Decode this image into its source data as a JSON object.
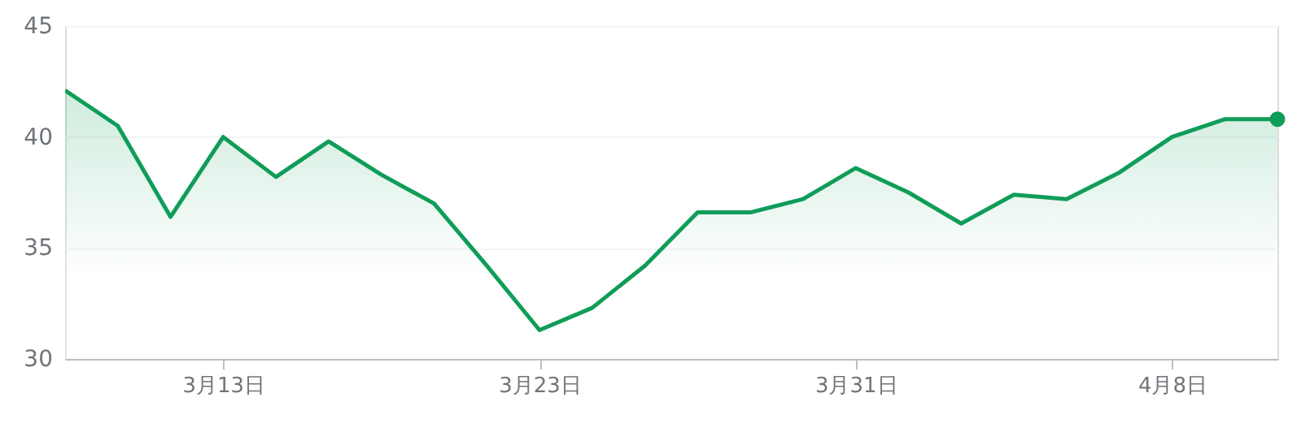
{
  "chart_data": {
    "type": "area",
    "categories": [
      null,
      null,
      null,
      "3月13日",
      null,
      null,
      null,
      null,
      null,
      "3月23日",
      null,
      null,
      null,
      null,
      null,
      "3月31日",
      null,
      null,
      null,
      null,
      null,
      "4月8日",
      null,
      null
    ],
    "series": [
      {
        "color": "#0f9d58",
        "values": [
          42.1,
          40.5,
          36.4,
          40.0,
          38.2,
          39.8,
          38.3,
          37.0,
          34.2,
          31.3,
          32.3,
          34.2,
          36.6,
          36.6,
          37.2,
          38.6,
          37.5,
          36.1,
          37.4,
          37.2,
          38.4,
          40.0,
          40.8,
          40.8
        ]
      }
    ],
    "ylim": [
      30,
      45
    ],
    "yticks": [
      30,
      35,
      40,
      45
    ],
    "grid": "y",
    "marker": "none"
  }
}
